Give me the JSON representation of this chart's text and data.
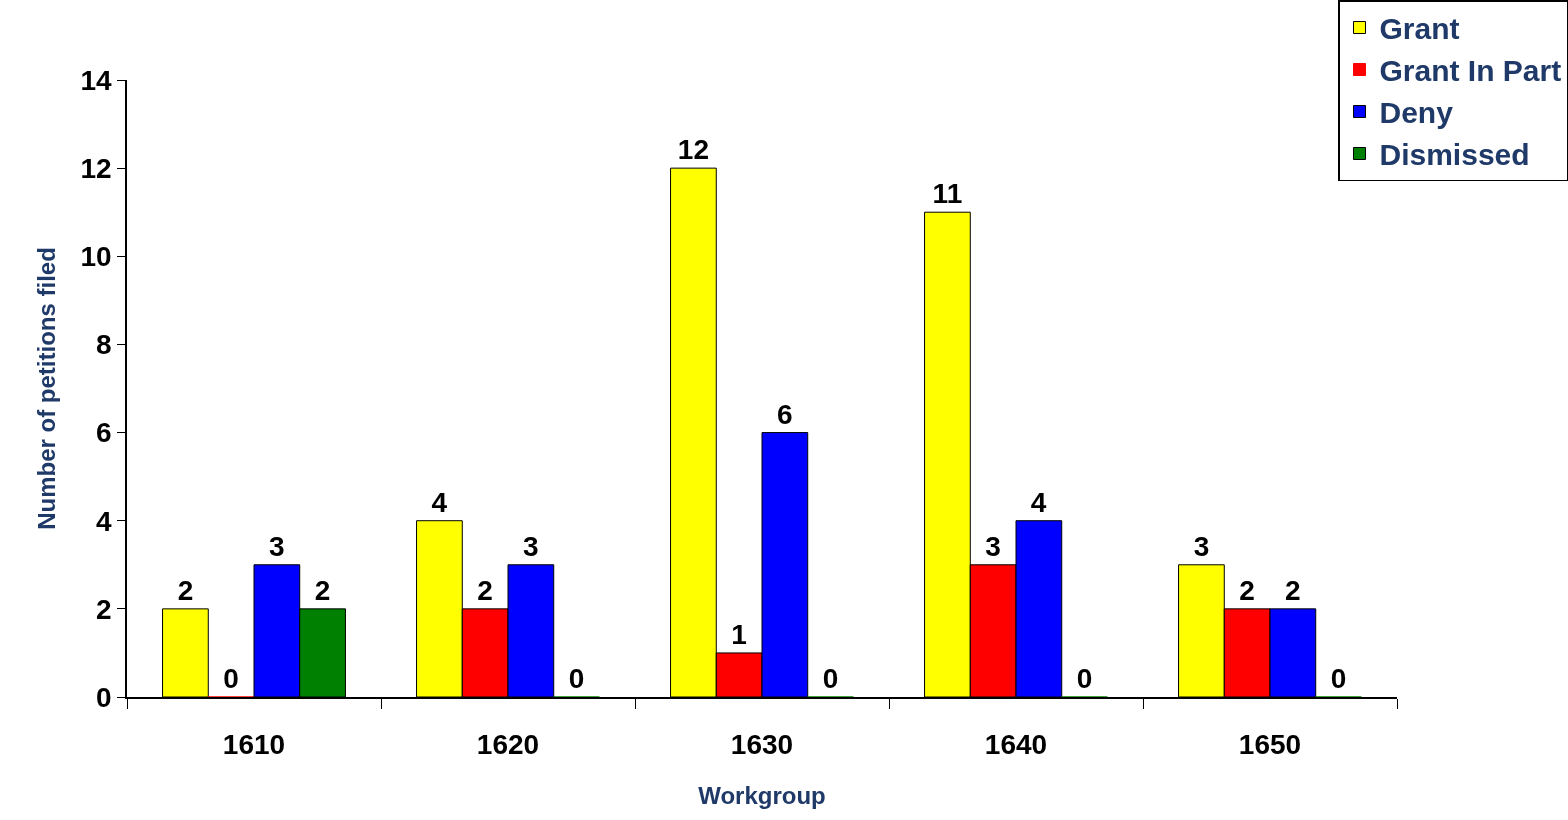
{
  "chart_data": {
    "type": "bar",
    "xlabel": "Workgroup",
    "ylabel": "Number of petitions filed",
    "categories": [
      "1610",
      "1620",
      "1630",
      "1640",
      "1650"
    ],
    "series": [
      {
        "name": "Grant",
        "color": "#ffff00",
        "values": [
          2,
          4,
          12,
          11,
          3
        ]
      },
      {
        "name": "Grant In Part",
        "color": "#ff0000",
        "values": [
          0,
          2,
          1,
          3,
          2
        ]
      },
      {
        "name": "Deny",
        "color": "#0000ff",
        "values": [
          3,
          3,
          6,
          4,
          2
        ]
      },
      {
        "name": "Dismissed",
        "color": "#008000",
        "values": [
          2,
          0,
          0,
          0,
          0
        ]
      }
    ],
    "ylim": [
      0,
      14
    ],
    "yticks": [
      0,
      2,
      4,
      6,
      8,
      10,
      12,
      14
    ],
    "data_labels": true,
    "grid": false,
    "legend": "top right"
  }
}
